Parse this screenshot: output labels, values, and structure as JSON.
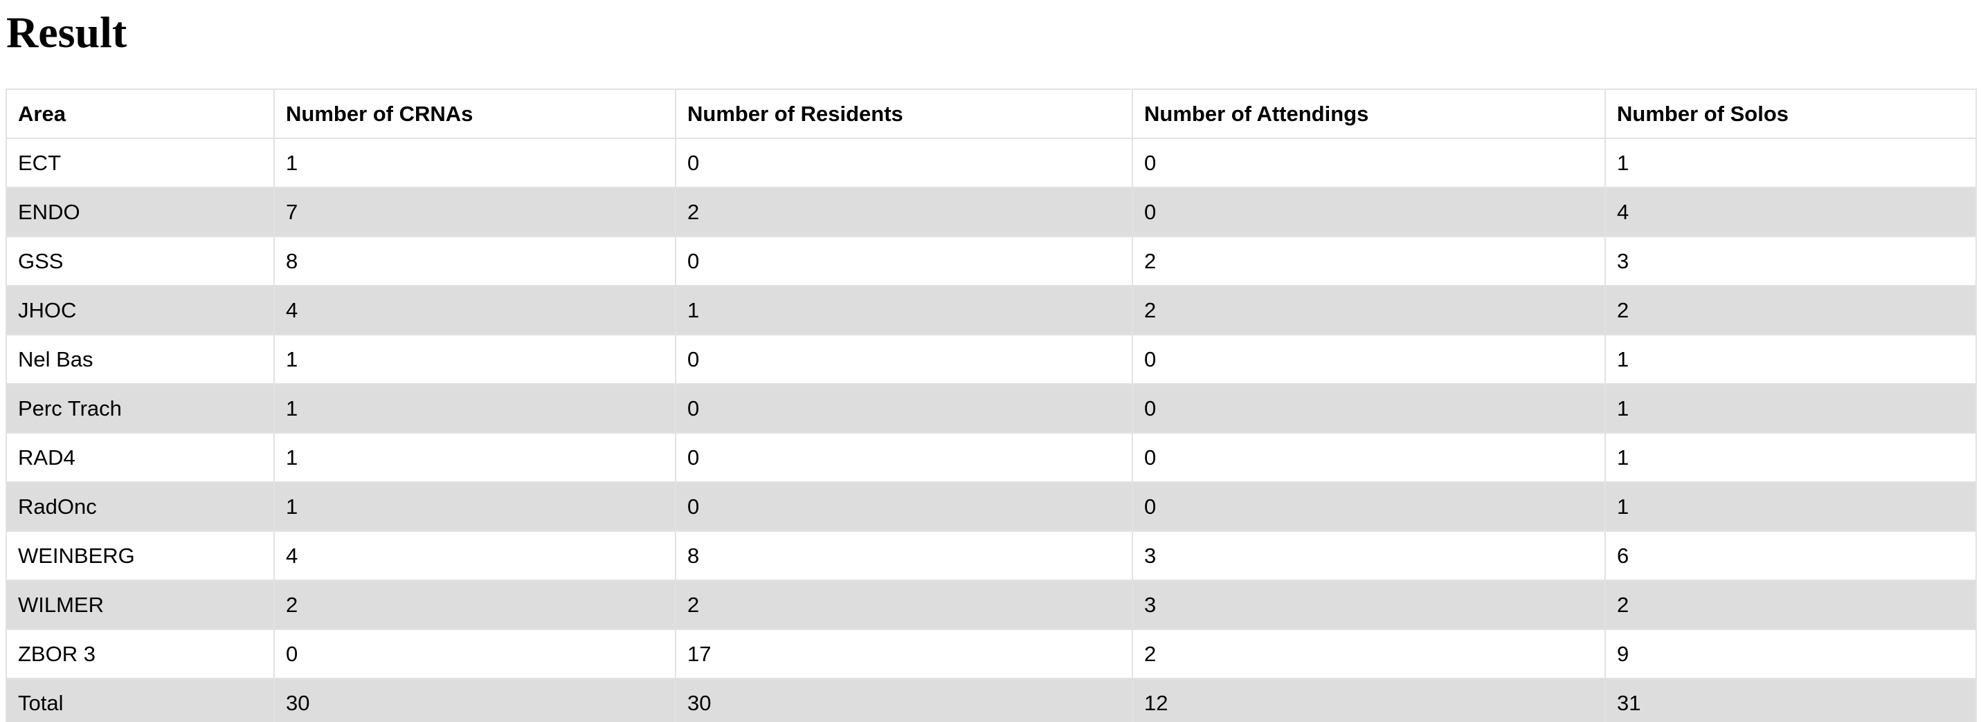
{
  "page": {
    "title": "Result"
  },
  "table": {
    "headers": [
      "Area",
      "Number of CRNAs",
      "Number of Residents",
      "Number of Attendings",
      "Number of Solos"
    ],
    "rows": [
      [
        "ECT",
        "1",
        "0",
        "0",
        "1"
      ],
      [
        "ENDO",
        "7",
        "2",
        "0",
        "4"
      ],
      [
        "GSS",
        "8",
        "0",
        "2",
        "3"
      ],
      [
        "JHOC",
        "4",
        "1",
        "2",
        "2"
      ],
      [
        "Nel Bas",
        "1",
        "0",
        "0",
        "1"
      ],
      [
        "Perc Trach",
        "1",
        "0",
        "0",
        "1"
      ],
      [
        "RAD4",
        "1",
        "0",
        "0",
        "1"
      ],
      [
        "RadOnc",
        "1",
        "0",
        "0",
        "1"
      ],
      [
        "WEINBERG",
        "4",
        "8",
        "3",
        "6"
      ],
      [
        "WILMER",
        "2",
        "2",
        "3",
        "2"
      ],
      [
        "ZBOR 3",
        "0",
        "17",
        "2",
        "9"
      ],
      [
        "Total",
        "30",
        "30",
        "12",
        "31"
      ]
    ]
  },
  "colors": {
    "row_stripe": "#dddddd",
    "row_plain": "#ffffff",
    "grid_line": "#e2e2e2",
    "text": "#000000"
  }
}
